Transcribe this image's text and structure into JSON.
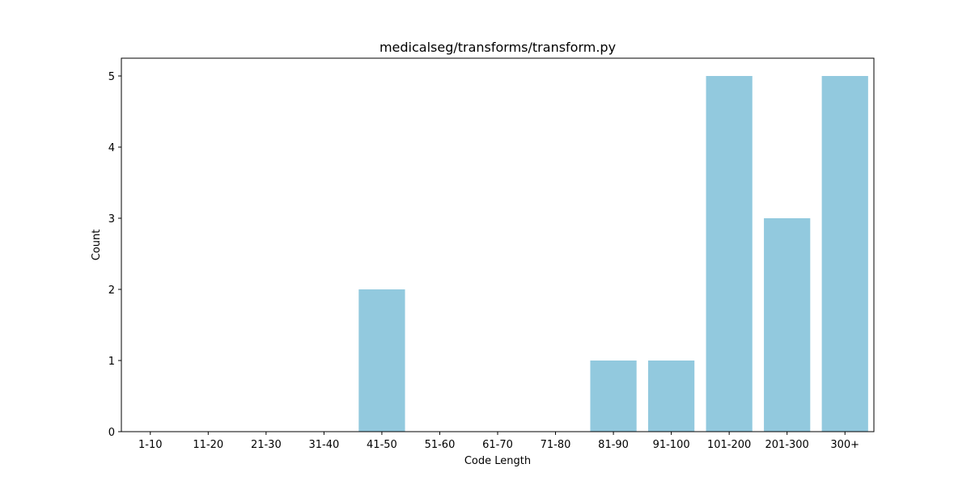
{
  "chart_data": {
    "type": "bar",
    "title": "medicalseg/transforms/transform.py",
    "xlabel": "Code Length",
    "ylabel": "Count",
    "categories": [
      "1-10",
      "11-20",
      "21-30",
      "31-40",
      "41-50",
      "51-60",
      "61-70",
      "71-80",
      "81-90",
      "91-100",
      "101-200",
      "201-300",
      "300+"
    ],
    "values": [
      0,
      0,
      0,
      0,
      2,
      0,
      0,
      0,
      1,
      1,
      5,
      3,
      5
    ],
    "yticks": [
      0,
      1,
      2,
      3,
      4,
      5
    ],
    "ylim": [
      0,
      5.25
    ],
    "bar_color": "#92C9DE",
    "grid": false,
    "legend": "none"
  }
}
